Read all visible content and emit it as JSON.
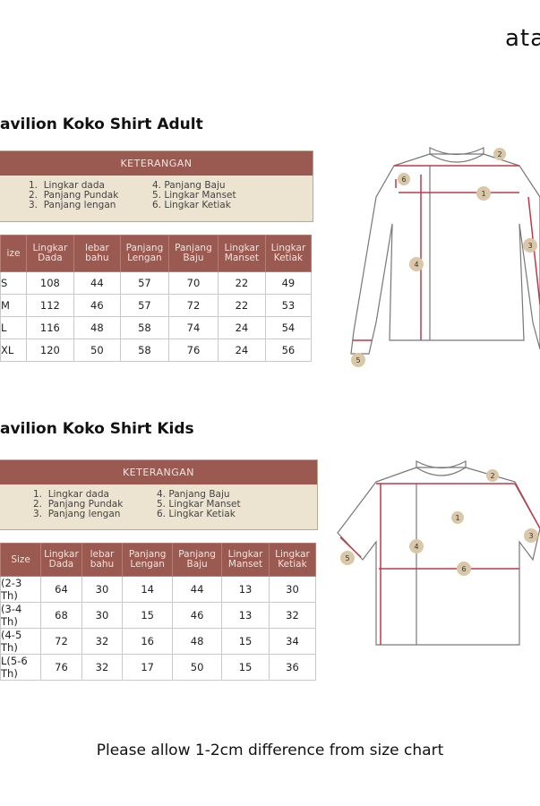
{
  "logo": "ata",
  "adult": {
    "title": "avilion Koko Shirt Adult",
    "keterangan": {
      "header": "KETERANGAN",
      "left": "1.  Lingkar dada\n2.  Panjang Pundak\n3.  Panjang lengan",
      "right": "4. Panjang Baju\n5. Lingkar Manset\n6. Lingkar Ketiak"
    },
    "headers": [
      "ize",
      "Lingkar Dada",
      "lebar bahu",
      "Panjang Lengan",
      "Panjang Baju",
      "Lingkar Manset",
      "Lingkar Ketiak"
    ],
    "rows": [
      [
        "S",
        "108",
        "44",
        "57",
        "70",
        "22",
        "49"
      ],
      [
        "M",
        "112",
        "46",
        "57",
        "72",
        "22",
        "53"
      ],
      [
        "L",
        "116",
        "48",
        "58",
        "74",
        "24",
        "54"
      ],
      [
        "XL",
        "120",
        "50",
        "58",
        "76",
        "24",
        "56"
      ]
    ]
  },
  "kids": {
    "title": "avilion Koko Shirt Kids",
    "keterangan": {
      "header": "KETERANGAN",
      "left": "1.  Lingkar dada\n2.  Panjang Pundak\n3.  Panjang lengan",
      "right": "4. Panjang Baju\n5. Lingkar Manset\n6. Lingkar Ketiak"
    },
    "headers": [
      "Size",
      "Lingkar Dada",
      "lebar bahu",
      "Panjang Lengan",
      "Panjang Baju",
      "Lingkar Manset",
      "Lingkar Ketiak"
    ],
    "rows": [
      [
        "(2-3 Th)",
        "64",
        "30",
        "14",
        "44",
        "13",
        "30"
      ],
      [
        "(3-4 Th)",
        "68",
        "30",
        "15",
        "46",
        "13",
        "32"
      ],
      [
        "(4-5 Th)",
        "72",
        "32",
        "16",
        "48",
        "15",
        "34"
      ],
      [
        "L(5-6 Th)",
        "76",
        "32",
        "17",
        "50",
        "15",
        "36"
      ]
    ]
  },
  "diagram_labels": [
    "1",
    "2",
    "3",
    "4",
    "5",
    "6"
  ],
  "footer": "Please allow 1-2cm difference from size chart",
  "colors": {
    "header": "#9a5a52",
    "legend_bg": "#ece3d0",
    "measure_line": "#c0394a",
    "marker": "#d9c7a8"
  }
}
